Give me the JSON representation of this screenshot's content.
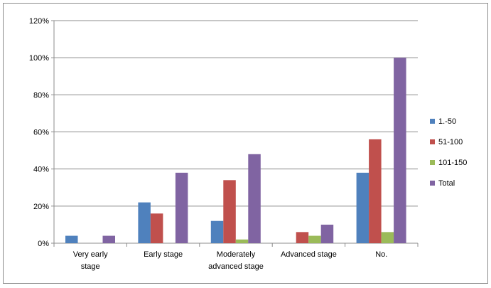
{
  "chart_data": {
    "type": "bar",
    "categories": [
      [
        "Very early",
        "stage"
      ],
      [
        "Early stage"
      ],
      [
        "Moderately",
        "advanced stage"
      ],
      [
        "Advanced stage"
      ],
      [
        "No."
      ]
    ],
    "series": [
      {
        "name": "1.-50",
        "color": "#4f81bd",
        "values": [
          4,
          22,
          12,
          0,
          38
        ]
      },
      {
        "name": "51-100",
        "color": "#c0504d",
        "values": [
          0,
          16,
          34,
          6,
          56
        ]
      },
      {
        "name": "101-150",
        "color": "#9bbb59",
        "values": [
          0,
          0,
          2,
          4,
          6
        ]
      },
      {
        "name": "Total",
        "color": "#8064a2",
        "values": [
          4,
          38,
          48,
          10,
          100
        ]
      }
    ],
    "yticks": [
      "0%",
      "20%",
      "40%",
      "60%",
      "80%",
      "100%",
      "120%"
    ],
    "ylim": [
      0,
      120
    ],
    "title": "",
    "xlabel": "",
    "ylabel": "",
    "grid": true,
    "legend": "right"
  }
}
